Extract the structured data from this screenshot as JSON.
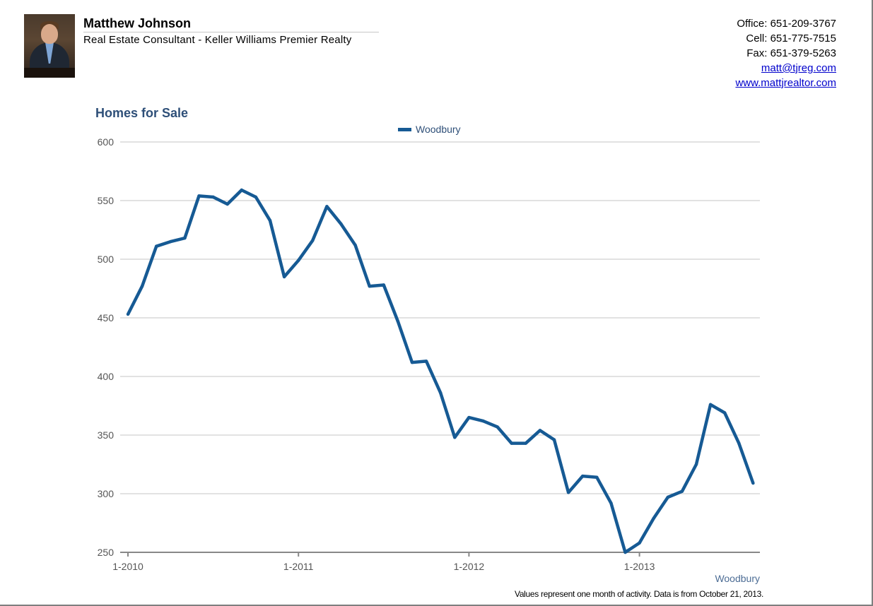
{
  "header": {
    "name": "Matthew Johnson",
    "title": "Real Estate Consultant - Keller Williams Premier Realty",
    "office": "Office: 651-209-3767",
    "cell": "Cell: 651-775-7515",
    "fax": "Fax: 651-379-5263",
    "email": "matt@tjreg.com",
    "website": "www.mattjrealtor.com"
  },
  "chart_data": {
    "type": "line",
    "title": "Homes for Sale",
    "legend": [
      "Woodbury"
    ],
    "series": [
      {
        "name": "Woodbury",
        "color": "#165a94",
        "values": [
          453,
          477,
          511,
          515,
          518,
          554,
          553,
          547,
          559,
          553,
          533,
          485,
          499,
          516,
          545,
          530,
          512,
          477,
          478,
          447,
          412,
          413,
          386,
          348,
          365,
          362,
          357,
          343,
          343,
          354,
          346,
          301,
          315,
          314,
          292,
          250,
          258,
          279,
          297,
          302,
          325,
          376,
          369,
          343,
          309
        ]
      }
    ],
    "x_start": "1-2010",
    "x_tick_labels": [
      "1-2010",
      "1-2011",
      "1-2012",
      "1-2013"
    ],
    "ylim": [
      250,
      600
    ],
    "y_ticks": [
      250,
      300,
      350,
      400,
      450,
      500,
      550,
      600
    ],
    "xlabel": "Woodbury",
    "ylabel": "",
    "grid": true,
    "legend_position": "top-center",
    "footnote": "Values represent one month of activity. Data is from October 21, 2013."
  }
}
